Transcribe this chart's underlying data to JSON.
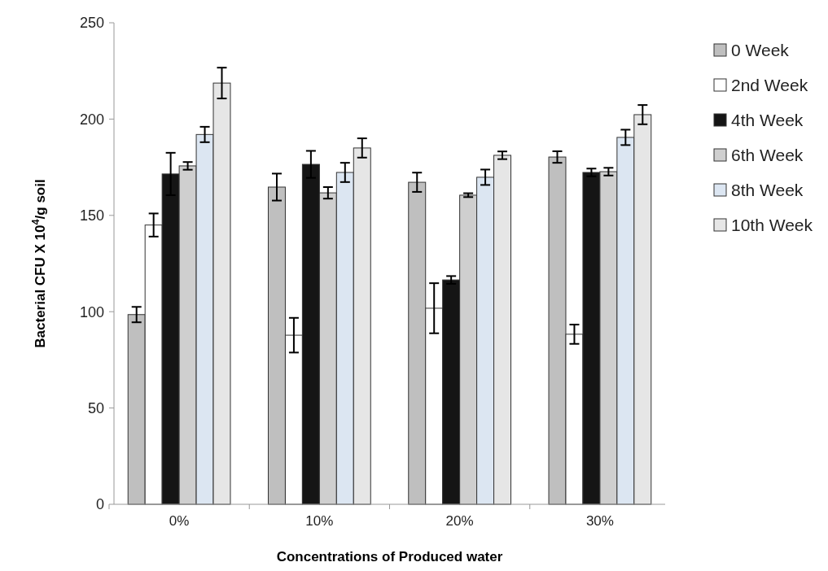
{
  "chart_data": {
    "type": "bar",
    "xlabel": "Concentrations of Produced water",
    "ylabel": "Bacterial CFU X 10$^{4}$/g soil",
    "categories": [
      "0%",
      "10%",
      "20%",
      "30%"
    ],
    "series": [
      {
        "name": "0 Week",
        "color": "#bfbfbf",
        "values": [
          98.5,
          164.7,
          167.2,
          180.3
        ],
        "errors": [
          4,
          7,
          5,
          3
        ]
      },
      {
        "name": "2nd Week",
        "color": "#ffffff",
        "values": [
          145,
          87.8,
          101.8,
          88.3
        ],
        "errors": [
          6,
          9,
          13,
          5
        ]
      },
      {
        "name": "4th Week",
        "color": "#151515",
        "values": [
          171.5,
          176.5,
          116.5,
          172.3
        ],
        "errors": [
          11,
          7,
          2,
          2
        ]
      },
      {
        "name": "6th Week",
        "color": "#cfcfcf",
        "values": [
          175.7,
          161.7,
          160.5,
          172.7
        ],
        "errors": [
          2,
          3,
          1,
          2
        ]
      },
      {
        "name": "8th Week",
        "color": "#dce6f2",
        "values": [
          192,
          172.3,
          169.8,
          190.5
        ],
        "errors": [
          4,
          5,
          4,
          4
        ]
      },
      {
        "name": "10th Week",
        "color": "#e6e6e6",
        "values": [
          218.7,
          185,
          181.2,
          202.3
        ],
        "errors": [
          8,
          5,
          2,
          5
        ]
      }
    ],
    "ylim": [
      0,
      250
    ],
    "yticks": [
      0,
      50,
      100,
      150,
      200,
      250
    ],
    "legend": "right"
  }
}
